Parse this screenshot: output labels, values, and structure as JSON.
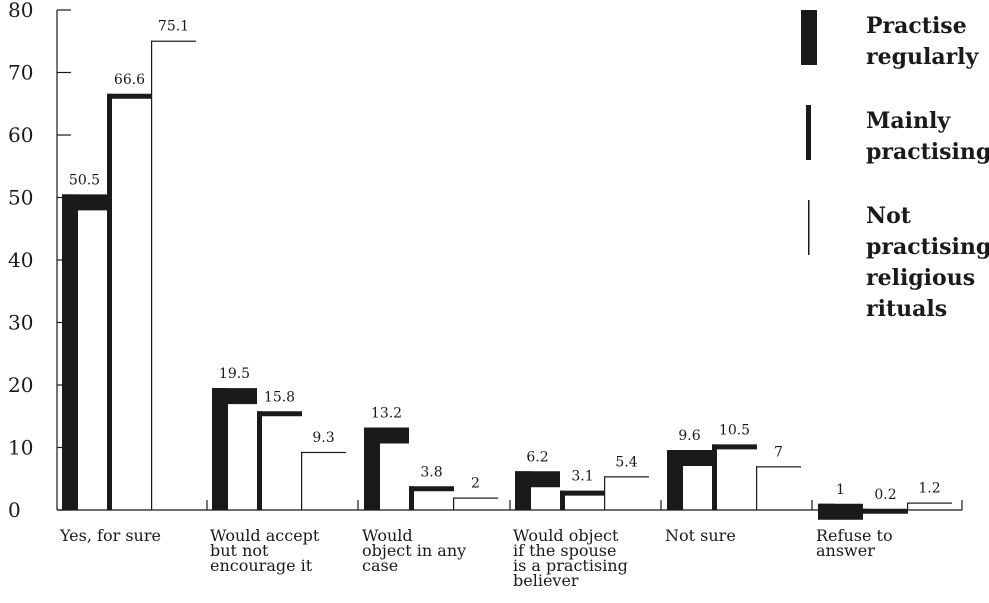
{
  "chart_data": {
    "type": "bar",
    "title": "",
    "xlabel": "",
    "ylabel": "",
    "ylim": [
      0,
      80
    ],
    "yticks": [
      0,
      10,
      20,
      30,
      40,
      50,
      60,
      70,
      80
    ],
    "ytick_labels": [
      "0",
      "10",
      "20",
      "30",
      "40",
      "50",
      "60",
      "70",
      "80"
    ],
    "grid": false,
    "legend_position": "top-right",
    "categories": [
      [
        "Yes, for sure"
      ],
      [
        "Would accept",
        "but not",
        "encourage it"
      ],
      [
        "Would",
        "object in any",
        "case"
      ],
      [
        "Would object",
        "if the spouse",
        "is a practising",
        "believer"
      ],
      [
        "Not sure"
      ],
      [
        "Refuse to",
        "answer"
      ]
    ],
    "series": [
      {
        "name": [
          "Practise",
          "regularly"
        ],
        "style": "thick",
        "color": "#1a1a1a",
        "values": [
          50.5,
          19.5,
          13.2,
          6.2,
          9.6,
          1
        ],
        "value_labels": [
          "50.5",
          "19.5",
          "13.2",
          "6.2",
          "9.6",
          "1"
        ]
      },
      {
        "name": [
          "Mainly",
          "practising"
        ],
        "style": "medium",
        "color": "#1a1a1a",
        "values": [
          66.6,
          15.8,
          3.8,
          3.1,
          10.5,
          0.2
        ],
        "value_labels": [
          "66.6",
          "15.8",
          "3.8",
          "3.1",
          "10.5",
          "0.2"
        ]
      },
      {
        "name": [
          "Not",
          "practising",
          "religious",
          "rituals"
        ],
        "style": "thin",
        "color": "#1a1a1a",
        "values": [
          75.1,
          9.3,
          2,
          5.4,
          7,
          1.2
        ],
        "value_labels": [
          "75.1",
          "9.3",
          "2",
          "5.4",
          "7",
          "1.2"
        ]
      }
    ]
  }
}
